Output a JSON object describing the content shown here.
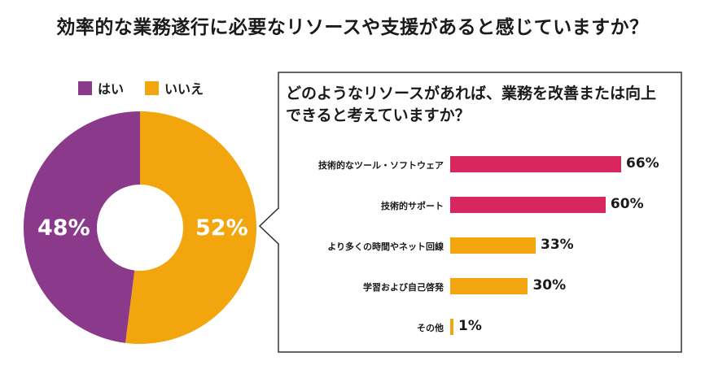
{
  "title": "効率的な業務遂行に必要なリソースや支援があると感じていますか？",
  "colors": {
    "yes": "#8b3a8b",
    "no": "#f2a50c",
    "top": "#d8265e"
  },
  "legend": {
    "yes": "はい",
    "no": "いいえ"
  },
  "donut": {
    "yes_label": "48%",
    "no_label": "52%"
  },
  "question": "どのようなリソースがあれば、業務を改善または向上できると考えていますか？",
  "chart_data": [
    {
      "type": "pie",
      "subtype": "donut",
      "categories": [
        "はい",
        "いいえ"
      ],
      "values": [
        48,
        52
      ],
      "labels": [
        "48%",
        "52%"
      ],
      "title": "効率的な業務遂行に必要なリソースや支援があると感じていますか？",
      "legend_position": "top"
    },
    {
      "type": "bar",
      "orientation": "horizontal",
      "title": "どのようなリソースがあれば、業務を改善または向上できると考えていますか？",
      "categories": [
        "技術的なツール・ソフトウェア",
        "技術的サポート",
        "より多くの時間やネット回線",
        "学習および自己啓発",
        "その他"
      ],
      "values": [
        66,
        60,
        33,
        30,
        1
      ],
      "labels": [
        "66%",
        "60%",
        "33%",
        "30%",
        "1%"
      ],
      "xlim": [
        0,
        66
      ]
    }
  ]
}
